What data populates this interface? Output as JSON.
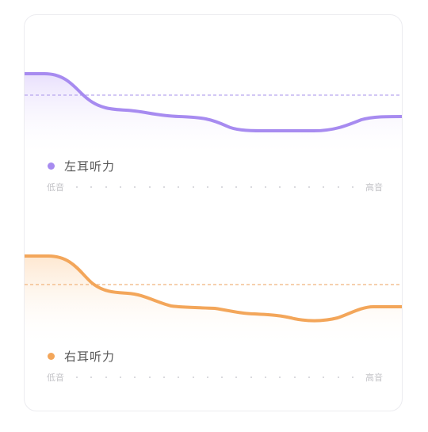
{
  "colors": {
    "left_curve": "#a78bf0",
    "left_fill": "#efe9fd",
    "left_ref_line": "#b7a6ef",
    "right_curve": "#f3a65a",
    "right_fill": "#fdecda",
    "right_ref_line": "#f1b57d",
    "axis_dot": "#cfcfd4",
    "card_border": "#ececf0"
  },
  "left_ear": {
    "legend_label": "左耳听力",
    "axis_low_label": "低音",
    "axis_high_label": "高音"
  },
  "right_ear": {
    "legend_label": "右耳听力",
    "axis_low_label": "低音",
    "axis_high_label": "高音"
  }
}
